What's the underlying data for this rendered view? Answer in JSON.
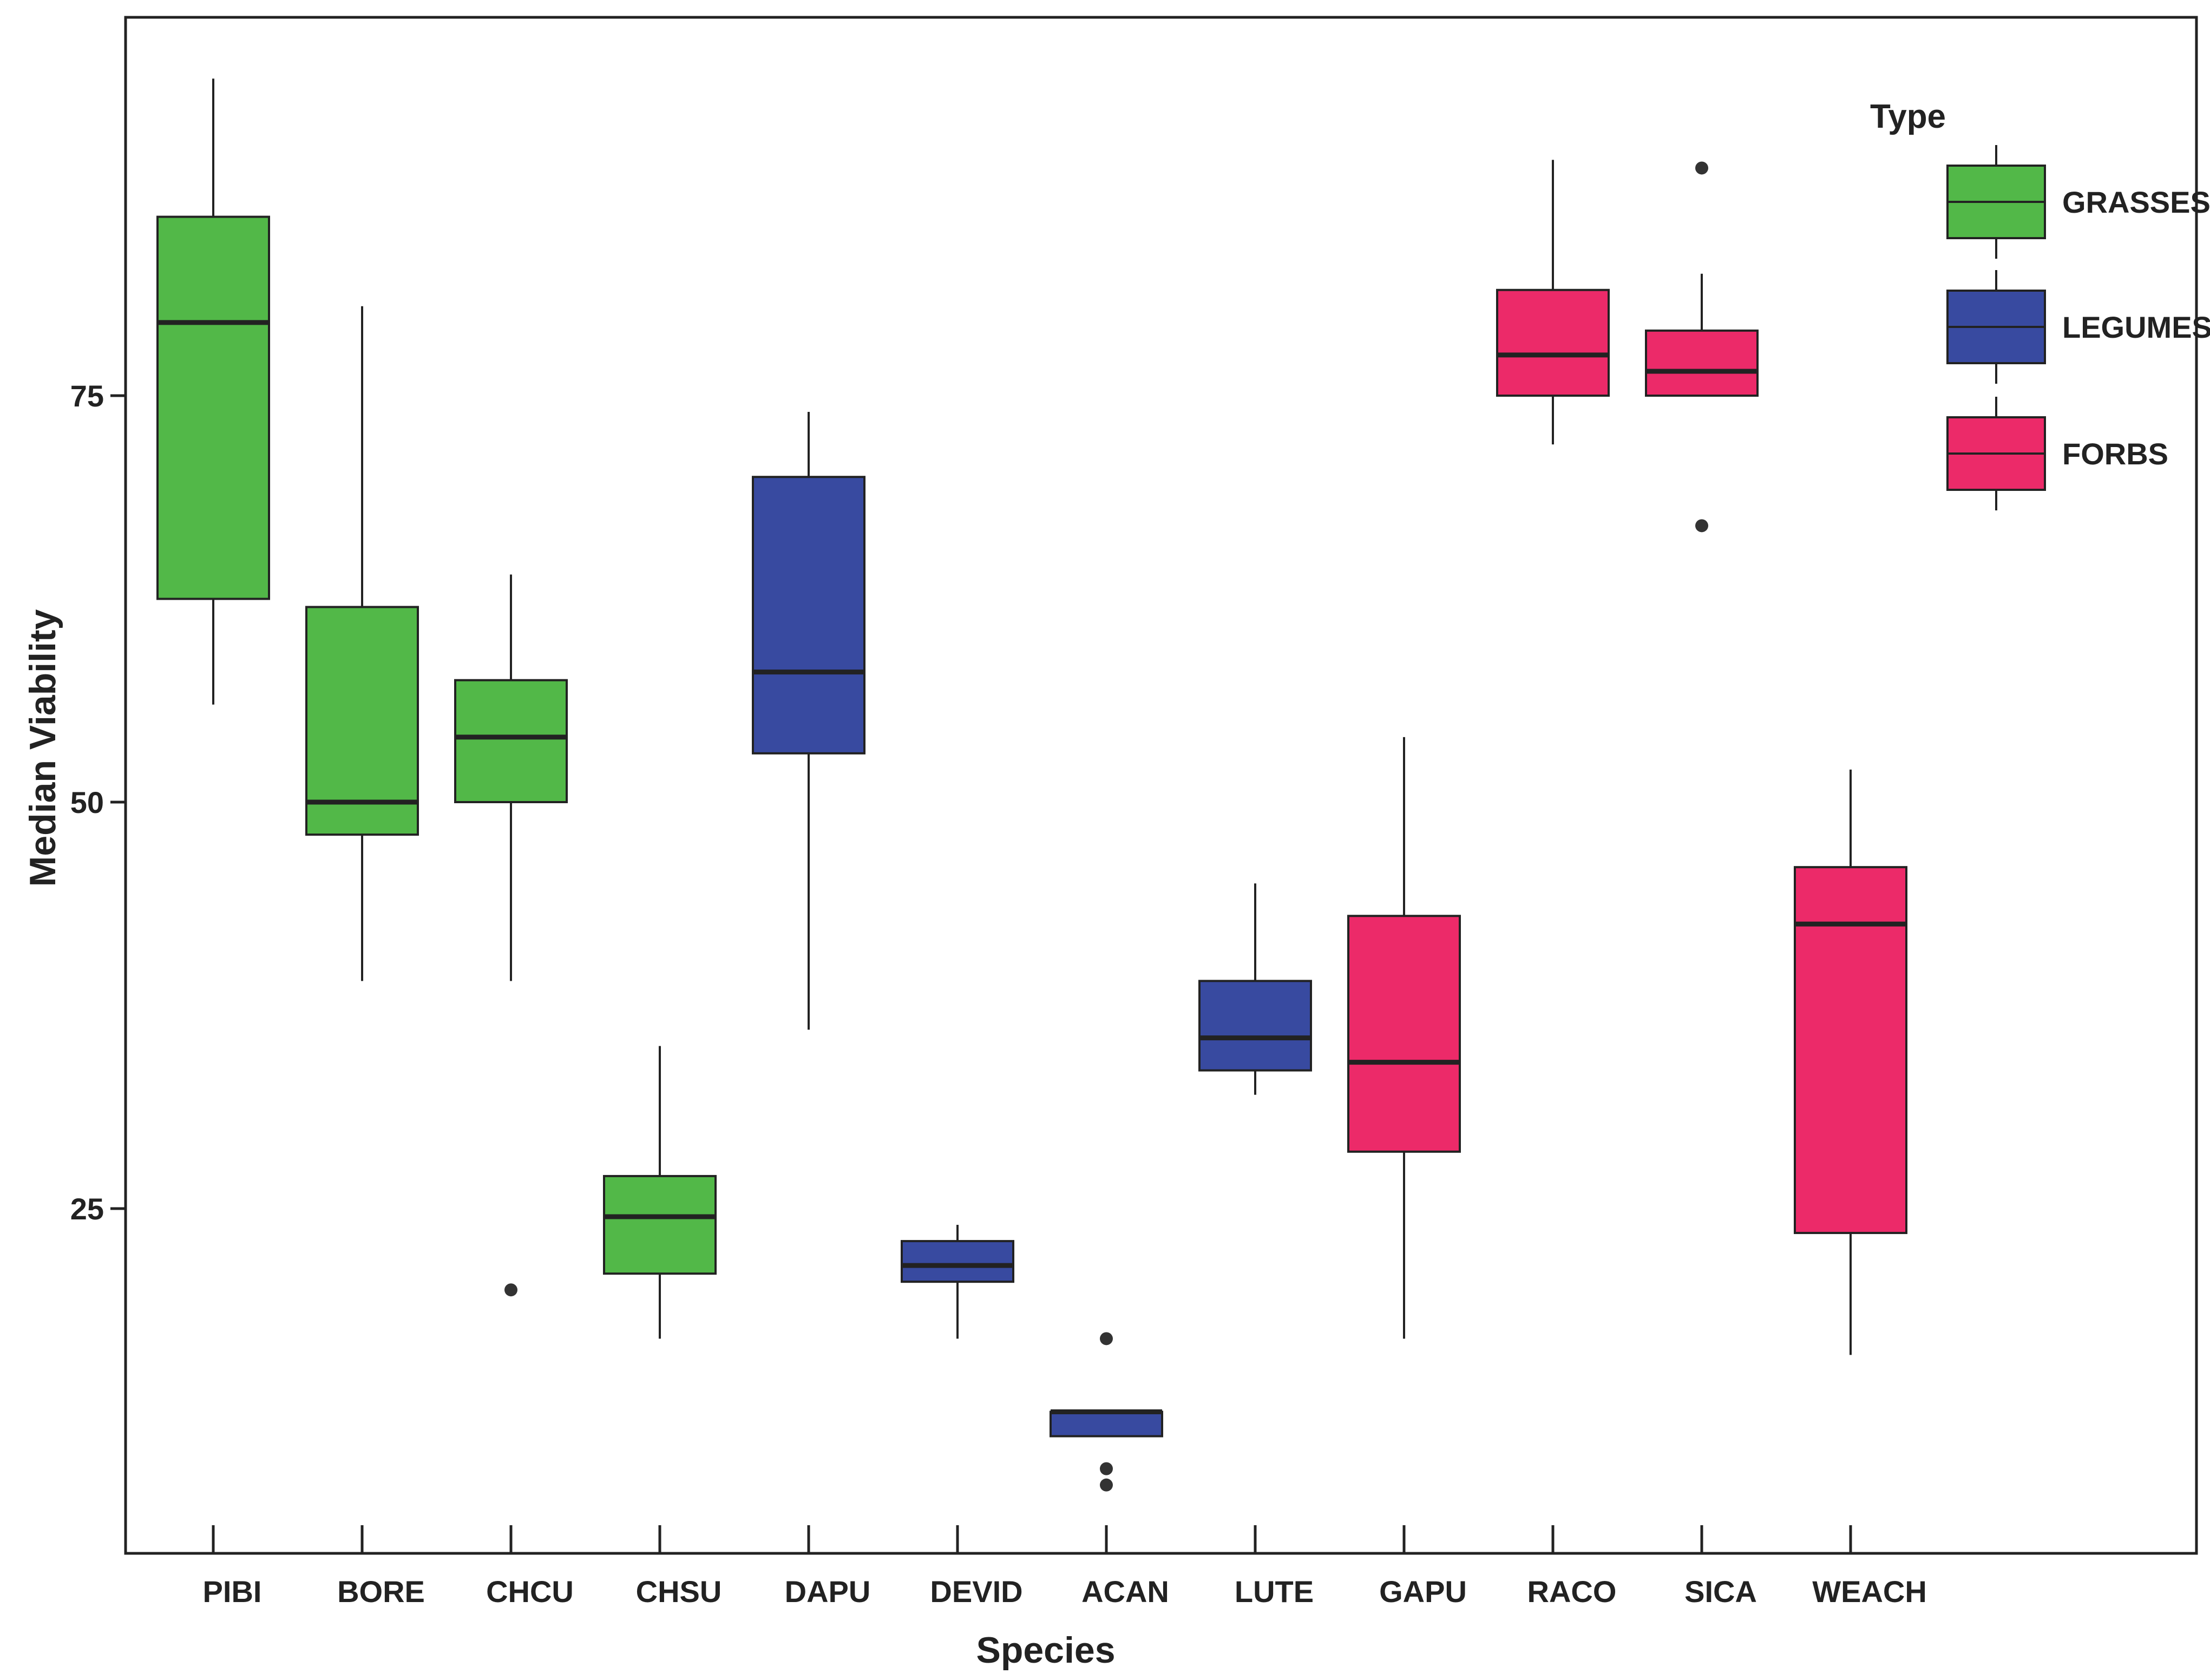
{
  "chart_data": {
    "type": "boxplot",
    "title": "",
    "xlabel": "Species",
    "ylabel": "Median Viability",
    "ylim": [
      3,
      97
    ],
    "yticks": [
      25,
      50,
      75
    ],
    "grid": false,
    "legend": {
      "title": "Type",
      "position": "top-right",
      "entries": [
        {
          "name": "GRASSES",
          "color": "#52b848"
        },
        {
          "name": "LEGUMES",
          "color": "#384aa0"
        },
        {
          "name": "FORBS",
          "color": "#ec2a69"
        }
      ]
    },
    "colors": {
      "GRASSES": "#52b848",
      "LEGUMES": "#384aa0",
      "FORBS": "#ec2a69"
    },
    "categories": [
      "PIBI",
      "BORE",
      "CHCU",
      "CHSU",
      "DAPU",
      "DEVID",
      "ACAN",
      "LUTE",
      "GAPU",
      "RACO",
      "SICA",
      "WEACH"
    ],
    "boxes": [
      {
        "label": "PIBI",
        "type": "GRASSES",
        "whisker_low": 56,
        "q1": 62.5,
        "median": 79.5,
        "q3": 86,
        "whisker_high": 94.5,
        "outliers": []
      },
      {
        "label": "BORE",
        "type": "GRASSES",
        "whisker_low": 39,
        "q1": 48,
        "median": 50,
        "q3": 62,
        "whisker_high": 80.5,
        "outliers": []
      },
      {
        "label": "CHCU",
        "type": "GRASSES",
        "whisker_low": 39,
        "q1": 50,
        "median": 54,
        "q3": 57.5,
        "whisker_high": 64,
        "outliers": [
          20
        ]
      },
      {
        "label": "CHSU",
        "type": "GRASSES",
        "whisker_low": 17,
        "q1": 21,
        "median": 24.5,
        "q3": 27,
        "whisker_high": 35,
        "outliers": []
      },
      {
        "label": "DAPU",
        "type": "LEGUMES",
        "whisker_low": 36,
        "q1": 53,
        "median": 58,
        "q3": 70,
        "whisker_high": 74,
        "outliers": []
      },
      {
        "label": "DEVID",
        "type": "LEGUMES",
        "whisker_low": 17,
        "q1": 20.5,
        "median": 21.5,
        "q3": 23,
        "whisker_high": 24,
        "outliers": []
      },
      {
        "label": "ACAN",
        "type": "LEGUMES",
        "whisker_low": 11,
        "q1": 11,
        "median": 12.5,
        "q3": 12.5,
        "whisker_high": 12.5,
        "outliers": [
          17,
          9,
          8
        ]
      },
      {
        "label": "LUTE",
        "type": "LEGUMES",
        "whisker_low": 32,
        "q1": 33.5,
        "median": 35.5,
        "q3": 39,
        "whisker_high": 45,
        "outliers": []
      },
      {
        "label": "GAPU",
        "type": "FORBS",
        "whisker_low": 17,
        "q1": 28.5,
        "median": 34,
        "q3": 43,
        "whisker_high": 54,
        "outliers": []
      },
      {
        "label": "RACO",
        "type": "FORBS",
        "whisker_low": 72,
        "q1": 75,
        "median": 77.5,
        "q3": 81.5,
        "whisker_high": 89.5,
        "outliers": []
      },
      {
        "label": "SICA",
        "type": "FORBS",
        "whisker_low": 75,
        "q1": 75,
        "median": 76.5,
        "q3": 79,
        "whisker_high": 82.5,
        "outliers": [
          89,
          67
        ]
      },
      {
        "label": "WEACH",
        "type": "FORBS",
        "whisker_low": 16,
        "q1": 23.5,
        "median": 42.5,
        "q3": 46,
        "whisker_high": 52,
        "outliers": []
      }
    ]
  }
}
